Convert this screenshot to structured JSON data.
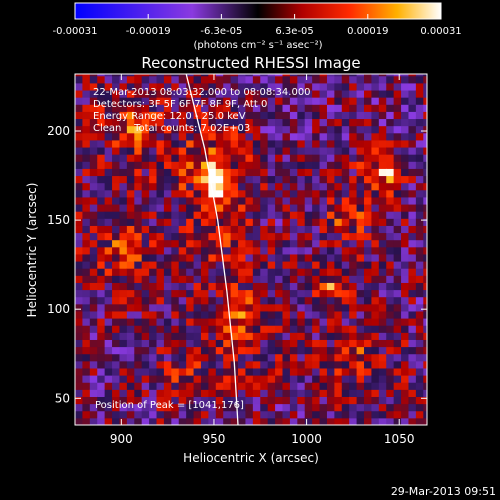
{
  "chart_data": {
    "type": "heatmap",
    "title": "Reconstructed RHESSI Image",
    "xlabel": "Heliocentric X (arcsec)",
    "ylabel": "Heliocentric Y (arcsec)",
    "xlim": [
      875,
      1065
    ],
    "ylim": [
      35,
      232
    ],
    "x_ticks": [
      900,
      950,
      1000,
      1050
    ],
    "y_ticks": [
      50,
      100,
      150,
      200
    ],
    "colorbar": {
      "ticks": [
        "-0.00031",
        "-0.00019",
        "-6.3e-05",
        "6.3e-05",
        "0.00019",
        "0.00031"
      ],
      "units": "(photons cm⁻² s⁻¹ asec⁻²)",
      "range": [
        -0.00031,
        0.00031
      ]
    },
    "annotations": [
      "22-Mar-2013 08:03:32.000 to 08:08:34.000",
      "Detectors: 3F 5F 6F 7F 8F 9F, Att 0",
      "Energy Range: 12.0 - 25.0 keV",
      "Clean    Total counts: 7.02E+03"
    ],
    "peak_label": "Position of Peak = [1041,176]",
    "peak": [
      1041,
      176
    ],
    "limb_points": [
      [
        935,
        232
      ],
      [
        945,
        190
      ],
      [
        952,
        150
      ],
      [
        957,
        110
      ],
      [
        961,
        70
      ],
      [
        963,
        35
      ]
    ],
    "hotspots": [
      {
        "x": 950,
        "y": 170,
        "intensity": 0.00031,
        "sx": 12,
        "sy": 20
      },
      {
        "x": 1041,
        "y": 176,
        "intensity": 0.00031,
        "sx": 7,
        "sy": 7
      },
      {
        "x": 1010,
        "y": 110,
        "intensity": 0.00022,
        "sx": 6,
        "sy": 6
      },
      {
        "x": 905,
        "y": 200,
        "intensity": 0.00018,
        "sx": 20,
        "sy": 18
      },
      {
        "x": 900,
        "y": 130,
        "intensity": 0.00015,
        "sx": 18,
        "sy": 20
      },
      {
        "x": 960,
        "y": 95,
        "intensity": 0.00016,
        "sx": 15,
        "sy": 25
      },
      {
        "x": 1025,
        "y": 70,
        "intensity": 0.00014,
        "sx": 20,
        "sy": 15
      },
      {
        "x": 1020,
        "y": 150,
        "intensity": 0.00014,
        "sx": 15,
        "sy": 20
      },
      {
        "x": 930,
        "y": 60,
        "intensity": 0.00012,
        "sx": 15,
        "sy": 12
      }
    ]
  },
  "footer": {
    "timestamp": "29-Mar-2013 09:51"
  }
}
